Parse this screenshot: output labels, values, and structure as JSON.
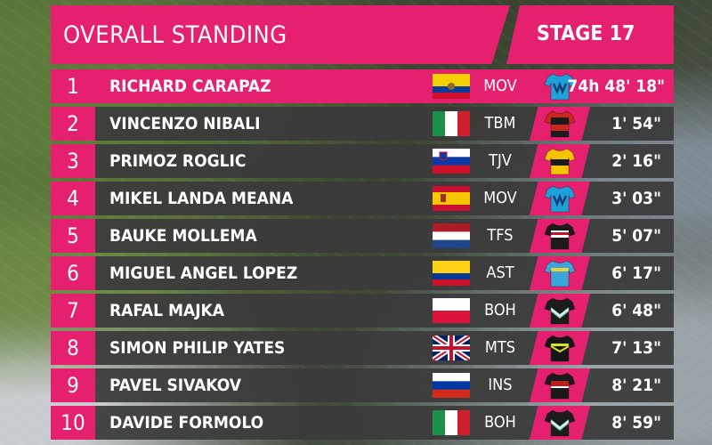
{
  "header": {
    "title": "OVERALL STANDING",
    "stage": "STAGE 17"
  },
  "standings": [
    {
      "rank": "1",
      "name": "RICHARD CARAPAZ",
      "flag": "ecuador-flag",
      "team": "MOV",
      "jersey": "movistar-jersey-icon",
      "time": "74h 48' 18\""
    },
    {
      "rank": "2",
      "name": "VINCENZO NIBALI",
      "flag": "italy-flag",
      "team": "TBM",
      "jersey": "bahrain-merida-jersey-icon",
      "time": "1' 54\""
    },
    {
      "rank": "3",
      "name": "PRIMOZ ROGLIC",
      "flag": "slovenia-flag",
      "team": "TJV",
      "jersey": "jumbo-visma-jersey-icon",
      "time": "2' 16\""
    },
    {
      "rank": "4",
      "name": "MIKEL LANDA MEANA",
      "flag": "spain-flag",
      "team": "MOV",
      "jersey": "movistar-jersey-icon",
      "time": "3' 03\""
    },
    {
      "rank": "5",
      "name": "BAUKE MOLLEMA",
      "flag": "netherlands-flag",
      "team": "TFS",
      "jersey": "trek-segafredo-jersey-icon",
      "time": "5' 07\""
    },
    {
      "rank": "6",
      "name": "MIGUEL ANGEL LOPEZ",
      "flag": "colombia-flag",
      "team": "AST",
      "jersey": "astana-jersey-icon",
      "time": "6' 17\""
    },
    {
      "rank": "7",
      "name": "RAFAL MAJKA",
      "flag": "poland-flag",
      "team": "BOH",
      "jersey": "bora-hansgrohe-jersey-icon",
      "time": "6' 48\""
    },
    {
      "rank": "8",
      "name": "SIMON PHILIP YATES",
      "flag": "uk-flag",
      "team": "MTS",
      "jersey": "mitchelton-scott-jersey-icon",
      "time": "7' 13\""
    },
    {
      "rank": "9",
      "name": "PAVEL SIVAKOV",
      "flag": "russia-flag",
      "team": "INS",
      "jersey": "team-ineos-jersey-icon",
      "time": "8' 21\""
    },
    {
      "rank": "10",
      "name": "DAVIDE FORMOLO",
      "flag": "italy-flag",
      "team": "BOH",
      "jersey": "bora-hansgrohe-jersey-icon",
      "time": "8' 59\""
    }
  ],
  "colors": {
    "accent": "#e4206f",
    "bar": "#3a3a3a",
    "text": "#ffffff"
  }
}
